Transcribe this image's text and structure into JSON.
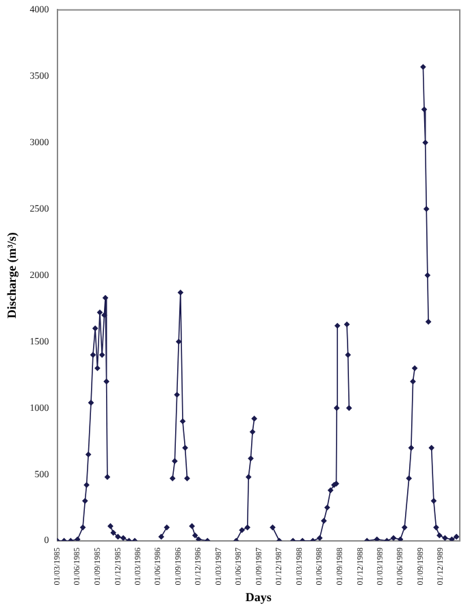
{
  "chart_data": {
    "type": "line",
    "xlabel": "Days",
    "ylabel": "Discharge (m³/s)",
    "xlim": [
      "1985-03-01",
      "1990-02-25"
    ],
    "ylim": [
      0,
      4000
    ],
    "yticks": [
      0,
      500,
      1000,
      1500,
      2000,
      2500,
      3000,
      3500,
      4000
    ],
    "xticks": [
      {
        "value": "1985-03-01",
        "label": "01/03/1985"
      },
      {
        "value": "1985-06-01",
        "label": "01/06/1985"
      },
      {
        "value": "1985-09-01",
        "label": "01/09/1985"
      },
      {
        "value": "1985-12-01",
        "label": "01/12/1985"
      },
      {
        "value": "1986-03-01",
        "label": "01/03/1986"
      },
      {
        "value": "1986-06-01",
        "label": "01/06/1986"
      },
      {
        "value": "1986-09-01",
        "label": "01/09/1986"
      },
      {
        "value": "1986-12-01",
        "label": "01/12/1986"
      },
      {
        "value": "1987-03-01",
        "label": "01/03/1987"
      },
      {
        "value": "1987-06-01",
        "label": "01/06/1987"
      },
      {
        "value": "1987-09-01",
        "label": "01/09/1987"
      },
      {
        "value": "1987-12-01",
        "label": "01/12/1987"
      },
      {
        "value": "1988-03-01",
        "label": "01/03/1988"
      },
      {
        "value": "1988-06-01",
        "label": "01/06/1988"
      },
      {
        "value": "1988-09-01",
        "label": "01/09/1988"
      },
      {
        "value": "1988-12-01",
        "label": "01/12/1988"
      },
      {
        "value": "1989-03-01",
        "label": "01/03/1989"
      },
      {
        "value": "1989-06-01",
        "label": "01/06/1989"
      },
      {
        "value": "1989-09-01",
        "label": "01/09/1989"
      },
      {
        "value": "1989-12-01",
        "label": "01/12/1989"
      }
    ],
    "grid": false,
    "legend": false,
    "marker": "diamond",
    "line_style": "solid",
    "series": [
      {
        "color": "#1a1a4e",
        "x": [
          "1985-03-01",
          "1985-04-01",
          "1985-05-01",
          "1985-06-01",
          "1985-06-25",
          "1985-07-05",
          "1985-07-12",
          "1985-07-20",
          "1985-08-01",
          "1985-08-10",
          "1985-08-20",
          "1985-08-30",
          "1985-09-10",
          "1985-09-20",
          "1985-09-30",
          "1985-10-05",
          "1985-10-10",
          "1985-10-14",
          "1985-10-20",
          "1985-10-28",
          "1985-11-10",
          "1985-12-01",
          "1985-12-25",
          "1986-01-20",
          "1986-02-15",
          "1986-04-01",
          "1986-06-15",
          "1986-07-10",
          "1986-08-01",
          "1986-08-05",
          "1986-08-15",
          "1986-08-25",
          "1986-09-02",
          "1986-09-10",
          "1986-09-20",
          "1986-10-01",
          "1986-10-10",
          "1986-10-20",
          "1986-11-01",
          "1986-11-15",
          "1986-12-01",
          "1987-01-10",
          "1987-03-01",
          "1987-05-20",
          "1987-06-15",
          "1987-07-10",
          "1987-07-15",
          "1987-07-25",
          "1987-08-02",
          "1987-08-10",
          "1987-09-01",
          "1987-11-01",
          "1987-12-01",
          "1988-01-01",
          "1988-02-01",
          "1988-03-15",
          "1988-05-01",
          "1988-06-01",
          "1988-06-20",
          "1988-07-05",
          "1988-07-20",
          "1988-08-05",
          "1988-08-15",
          "1988-08-17",
          "1988-08-20",
          "1988-09-01",
          "1988-10-02",
          "1988-10-07",
          "1988-10-12",
          "1988-11-01",
          "1989-01-01",
          "1989-02-15",
          "1989-04-01",
          "1989-05-01",
          "1989-06-01",
          "1989-06-20",
          "1989-07-10",
          "1989-07-20",
          "1989-07-28",
          "1989-08-05",
          "1989-08-20",
          "1989-09-12",
          "1989-09-17",
          "1989-09-22",
          "1989-09-27",
          "1989-10-02",
          "1989-10-06",
          "1989-10-14",
          "1989-10-20",
          "1989-10-30",
          "1989-11-10",
          "1989-11-25",
          "1989-12-20",
          "1990-01-20",
          "1990-02-10"
        ],
        "values": [
          0,
          0,
          0,
          10,
          100,
          300,
          420,
          650,
          1040,
          1400,
          1600,
          1300,
          1720,
          1400,
          1700,
          1830,
          1200,
          480,
          null,
          110,
          60,
          30,
          20,
          0,
          0,
          null,
          30,
          100,
          null,
          470,
          600,
          1100,
          1500,
          1870,
          900,
          700,
          470,
          null,
          110,
          40,
          10,
          0,
          null,
          0,
          80,
          100,
          480,
          620,
          820,
          920,
          null,
          100,
          0,
          null,
          0,
          0,
          0,
          20,
          150,
          250,
          380,
          420,
          430,
          1000,
          1620,
          null,
          1630,
          1400,
          1000,
          null,
          0,
          10,
          0,
          20,
          10,
          100,
          470,
          700,
          1200,
          1300,
          null,
          3570,
          3250,
          3000,
          2500,
          2000,
          1650,
          null,
          700,
          300,
          100,
          40,
          20,
          10,
          30
        ]
      }
    ]
  }
}
